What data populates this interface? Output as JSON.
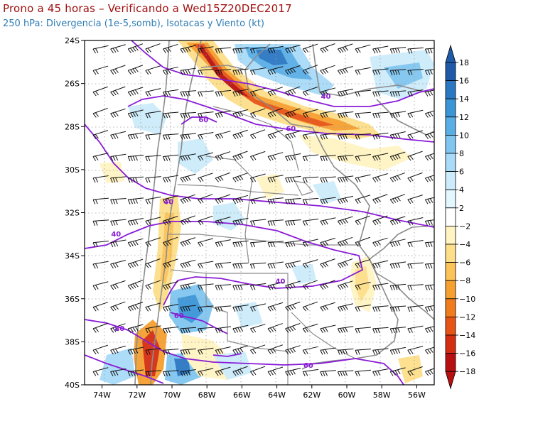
{
  "header": {
    "title": "Prono a 45 horas – Verificando a Wed15Z20DEC2017",
    "subtitle": "250 hPa: Divergencia (1e-5,somb), Isotacas y Viento (kt)"
  },
  "map": {
    "lat_labels": [
      "24S",
      "26S",
      "28S",
      "30S",
      "32S",
      "34S",
      "36S",
      "38S",
      "40S"
    ],
    "lon_labels": [
      "74W",
      "72W",
      "70W",
      "68W",
      "66W",
      "64W",
      "62W",
      "60W",
      "58W",
      "56W"
    ],
    "isotach_labels": [
      {
        "text": "40",
        "lon": -61.2,
        "lat": -26.7
      },
      {
        "text": "60",
        "lon": -68.2,
        "lat": -27.8
      },
      {
        "text": "60",
        "lon": -63.2,
        "lat": -28.2
      },
      {
        "text": "40",
        "lon": -70.2,
        "lat": -31.6
      },
      {
        "text": "40",
        "lon": -73.2,
        "lat": -33.1
      },
      {
        "text": "40",
        "lon": -63.8,
        "lat": -35.3
      },
      {
        "text": "60",
        "lon": -69.6,
        "lat": -36.9
      },
      {
        "text": "80",
        "lon": -73.0,
        "lat": -37.5
      },
      {
        "text": "60",
        "lon": -62.2,
        "lat": -39.2
      }
    ]
  },
  "colorbar": {
    "labels": [
      "18",
      "16",
      "14",
      "12",
      "10",
      "8",
      "6",
      "4",
      "2",
      "−2",
      "−4",
      "−6",
      "−8",
      "−10",
      "−12",
      "−14",
      "−16",
      "−18"
    ],
    "colors": [
      "#1e5aa8",
      "#2b78c2",
      "#3a95d6",
      "#5aaee6",
      "#80c6f0",
      "#a8dbf7",
      "#cdecfb",
      "#e4f7ff",
      "#ffffff",
      "#fff4c2",
      "#fddf8a",
      "#fbc358",
      "#f6a030",
      "#f07c1e",
      "#e65416",
      "#d42e12",
      "#b81010"
    ]
  }
}
